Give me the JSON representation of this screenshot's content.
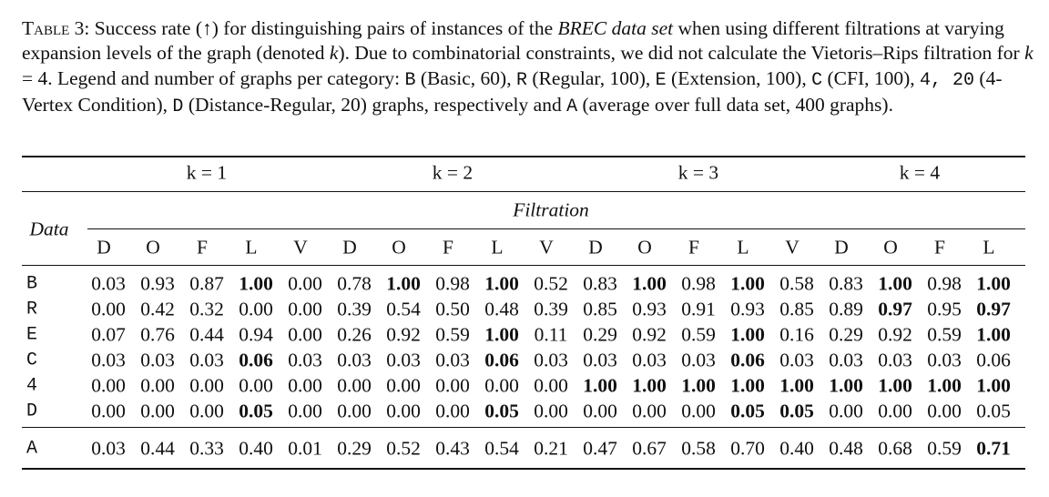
{
  "caption": [
    {
      "text": "Table 3:",
      "style": "smallcaps"
    },
    {
      "text": " Success rate (↑) for distinguishing pairs of instances of the ",
      "style": "normal"
    },
    {
      "text": "BREC data set",
      "style": "italic"
    },
    {
      "text": " when using different filtrations at varying expansion levels of the graph (denoted ",
      "style": "normal"
    },
    {
      "text": "k",
      "style": "italic"
    },
    {
      "text": "). Due to combinatorial constraints, we did not calculate the Vietoris–Rips filtration for ",
      "style": "normal"
    },
    {
      "text": "k",
      "style": "italic"
    },
    {
      "text": " = 4. Legend and number of graphs per category: ",
      "style": "normal"
    },
    {
      "text": "B",
      "style": "mono"
    },
    {
      "text": " (Basic, 60), ",
      "style": "normal"
    },
    {
      "text": "R",
      "style": "mono"
    },
    {
      "text": " (Regular, 100), ",
      "style": "normal"
    },
    {
      "text": "E",
      "style": "mono"
    },
    {
      "text": " (Extension, 100), ",
      "style": "normal"
    },
    {
      "text": "C",
      "style": "mono"
    },
    {
      "text": " (CFI, 100), ",
      "style": "normal"
    },
    {
      "text": "4, 20",
      "style": "mono"
    },
    {
      "text": " (4-Vertex Condition), ",
      "style": "normal"
    },
    {
      "text": "D",
      "style": "mono"
    },
    {
      "text": " (Distance-Regular, 20) graphs, respectively and ",
      "style": "normal"
    },
    {
      "text": "A",
      "style": "mono"
    },
    {
      "text": " (average over full data set, 400 graphs).",
      "style": "normal"
    }
  ],
  "table": {
    "groups": [
      {
        "label": "k = 1",
        "span": 5
      },
      {
        "label": "k = 2",
        "span": 5
      },
      {
        "label": "k = 3",
        "span": 5
      },
      {
        "label": "k = 4",
        "span": 4
      }
    ],
    "filtration_header": "Filtration",
    "data_header": "Data",
    "columns": [
      "D",
      "O",
      "F",
      "L",
      "V",
      "D",
      "O",
      "F",
      "L",
      "V",
      "D",
      "O",
      "F",
      "L",
      "V",
      "D",
      "O",
      "F",
      "L"
    ],
    "rows": [
      {
        "label": "B",
        "values": [
          "0.03",
          "0.93",
          "0.87",
          "1.00",
          "0.00",
          "0.78",
          "1.00",
          "0.98",
          "1.00",
          "0.52",
          "0.83",
          "1.00",
          "0.98",
          "1.00",
          "0.58",
          "0.83",
          "1.00",
          "0.98",
          "1.00"
        ],
        "bold": [
          3,
          6,
          8,
          11,
          13,
          16,
          18
        ]
      },
      {
        "label": "R",
        "values": [
          "0.00",
          "0.42",
          "0.32",
          "0.00",
          "0.00",
          "0.39",
          "0.54",
          "0.50",
          "0.48",
          "0.39",
          "0.85",
          "0.93",
          "0.91",
          "0.93",
          "0.85",
          "0.89",
          "0.97",
          "0.95",
          "0.97"
        ],
        "bold": [
          16,
          18
        ]
      },
      {
        "label": "E",
        "values": [
          "0.07",
          "0.76",
          "0.44",
          "0.94",
          "0.00",
          "0.26",
          "0.92",
          "0.59",
          "1.00",
          "0.11",
          "0.29",
          "0.92",
          "0.59",
          "1.00",
          "0.16",
          "0.29",
          "0.92",
          "0.59",
          "1.00"
        ],
        "bold": [
          8,
          13,
          18
        ]
      },
      {
        "label": "C",
        "values": [
          "0.03",
          "0.03",
          "0.03",
          "0.06",
          "0.03",
          "0.03",
          "0.03",
          "0.03",
          "0.06",
          "0.03",
          "0.03",
          "0.03",
          "0.03",
          "0.06",
          "0.03",
          "0.03",
          "0.03",
          "0.03",
          "0.06"
        ],
        "bold": [
          3,
          8,
          13
        ]
      },
      {
        "label": "4",
        "values": [
          "0.00",
          "0.00",
          "0.00",
          "0.00",
          "0.00",
          "0.00",
          "0.00",
          "0.00",
          "0.00",
          "0.00",
          "1.00",
          "1.00",
          "1.00",
          "1.00",
          "1.00",
          "1.00",
          "1.00",
          "1.00",
          "1.00"
        ],
        "bold": [
          10,
          11,
          12,
          13,
          14,
          15,
          16,
          17,
          18
        ]
      },
      {
        "label": "D",
        "values": [
          "0.00",
          "0.00",
          "0.00",
          "0.05",
          "0.00",
          "0.00",
          "0.00",
          "0.00",
          "0.05",
          "0.00",
          "0.00",
          "0.00",
          "0.00",
          "0.05",
          "0.05",
          "0.00",
          "0.00",
          "0.00",
          "0.05"
        ],
        "bold": [
          3,
          8,
          13,
          14
        ]
      }
    ],
    "summary_row": {
      "label": "A",
      "values": [
        "0.03",
        "0.44",
        "0.33",
        "0.40",
        "0.01",
        "0.29",
        "0.52",
        "0.43",
        "0.54",
        "0.21",
        "0.47",
        "0.67",
        "0.58",
        "0.70",
        "0.40",
        "0.48",
        "0.68",
        "0.59",
        "0.71"
      ],
      "bold": [
        18
      ]
    }
  }
}
